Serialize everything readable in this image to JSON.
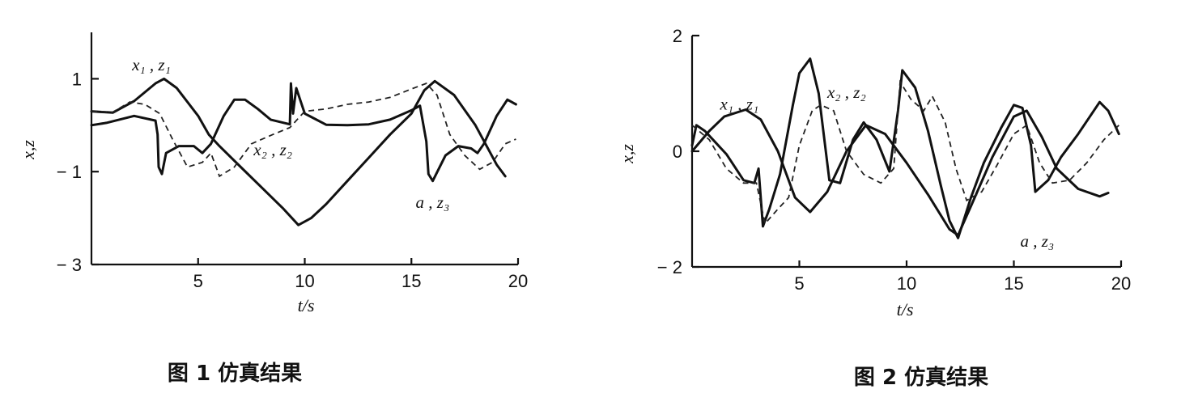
{
  "chart_data": [
    {
      "type": "line",
      "xlabel": "t/s",
      "ylabel": "x,z",
      "caption": "图 1    仿真结果",
      "xlim": [
        0,
        20
      ],
      "ylim": [
        -3,
        2
      ],
      "xticks": [
        5,
        10,
        15,
        20
      ],
      "yticks": [
        1,
        -1,
        -3
      ],
      "xtick_labels": [
        "5",
        "10",
        "15",
        "20"
      ],
      "ytick_labels": [
        "1",
        "− 1",
        "− 3"
      ],
      "annotations": [
        {
          "text": "x₁ , z₁",
          "x": 1.9,
          "y": 1.18
        },
        {
          "text": "x₂ , z₂",
          "x": 7.6,
          "y": -0.65
        },
        {
          "text": "a , z₃",
          "x": 15.2,
          "y": -1.78
        }
      ],
      "series": [
        {
          "style": "solid",
          "points": [
            [
              0,
              0.3
            ],
            [
              1,
              0.27
            ],
            [
              2,
              0.52
            ],
            [
              3,
              0.9
            ],
            [
              3.4,
              1.0
            ],
            [
              4,
              0.8
            ],
            [
              5,
              0.2
            ],
            [
              5.5,
              -0.2
            ],
            [
              6,
              -0.45
            ],
            [
              7,
              -0.9
            ],
            [
              8,
              -1.35
            ],
            [
              9,
              -1.8
            ],
            [
              9.7,
              -2.15
            ],
            [
              10.3,
              -2.0
            ],
            [
              11,
              -1.7
            ],
            [
              12,
              -1.2
            ],
            [
              13,
              -0.7
            ],
            [
              14,
              -0.2
            ],
            [
              15,
              0.25
            ],
            [
              15.6,
              0.75
            ],
            [
              16.1,
              0.95
            ],
            [
              17,
              0.65
            ],
            [
              18,
              0
            ],
            [
              19,
              -0.85
            ],
            [
              19.4,
              -1.1
            ]
          ]
        },
        {
          "style": "solid",
          "points": [
            [
              0,
              0
            ],
            [
              0.7,
              0.05
            ],
            [
              1.3,
              0.12
            ],
            [
              2,
              0.2
            ],
            [
              3,
              0.1
            ],
            [
              3.1,
              -0.2
            ],
            [
              3.15,
              -0.9
            ],
            [
              3.3,
              -1.05
            ],
            [
              3.5,
              -0.6
            ],
            [
              4.1,
              -0.45
            ],
            [
              4.8,
              -0.45
            ],
            [
              5.2,
              -0.6
            ],
            [
              5.6,
              -0.4
            ],
            [
              6.2,
              0.2
            ],
            [
              6.7,
              0.55
            ],
            [
              7.2,
              0.55
            ],
            [
              7.8,
              0.35
            ],
            [
              8.4,
              0.12
            ],
            [
              9.3,
              0.02
            ],
            [
              9.35,
              0.9
            ],
            [
              9.45,
              0.25
            ],
            [
              9.6,
              0.8
            ],
            [
              10,
              0.25
            ],
            [
              11,
              0.01
            ],
            [
              12,
              0
            ],
            [
              13,
              0.02
            ],
            [
              14,
              0.12
            ],
            [
              15,
              0.32
            ],
            [
              15.4,
              0.42
            ],
            [
              15.7,
              -0.35
            ],
            [
              15.8,
              -1.05
            ],
            [
              16,
              -1.2
            ],
            [
              16.6,
              -0.65
            ],
            [
              17.2,
              -0.45
            ],
            [
              17.8,
              -0.5
            ],
            [
              18.1,
              -0.6
            ],
            [
              18.4,
              -0.4
            ],
            [
              19,
              0.2
            ],
            [
              19.5,
              0.55
            ],
            [
              19.9,
              0.45
            ]
          ]
        },
        {
          "style": "dash",
          "points": [
            [
              0,
              0.3
            ],
            [
              1,
              0.28
            ],
            [
              1.8,
              0.5
            ],
            [
              2.5,
              0.45
            ],
            [
              3.2,
              0.25
            ],
            [
              3.8,
              -0.3
            ],
            [
              4.5,
              -0.9
            ],
            [
              5.2,
              -0.8
            ],
            [
              5.6,
              -0.6
            ],
            [
              6,
              -1.1
            ],
            [
              6.7,
              -0.9
            ],
            [
              7.5,
              -0.4
            ],
            [
              8.5,
              -0.2
            ],
            [
              9.3,
              -0.05
            ],
            [
              10,
              0.3
            ],
            [
              11,
              0.35
            ],
            [
              12,
              0.45
            ],
            [
              13,
              0.5
            ],
            [
              14,
              0.6
            ],
            [
              15,
              0.78
            ],
            [
              15.7,
              0.9
            ],
            [
              16.2,
              0.65
            ],
            [
              16.8,
              -0.2
            ],
            [
              17.5,
              -0.65
            ],
            [
              18.2,
              -0.95
            ],
            [
              18.8,
              -0.8
            ],
            [
              19.4,
              -0.4
            ],
            [
              19.9,
              -0.3
            ]
          ]
        }
      ]
    },
    {
      "type": "line",
      "xlabel": "t/s",
      "ylabel": "x,z",
      "caption": "图 2    仿真结果",
      "xlim": [
        0,
        20
      ],
      "ylim": [
        -2,
        2
      ],
      "xticks": [
        5,
        10,
        15,
        20
      ],
      "yticks": [
        2,
        0,
        -2
      ],
      "xtick_labels": [
        "5",
        "10",
        "15",
        "20"
      ],
      "ytick_labels": [
        "2",
        "0",
        "− 2"
      ],
      "annotations": [
        {
          "text": "x₁ , z₁",
          "x": 1.3,
          "y": 0.72
        },
        {
          "text": "x₂ , z₂",
          "x": 6.3,
          "y": 0.92
        },
        {
          "text": "a , z₃",
          "x": 15.3,
          "y": -1.65
        }
      ],
      "series": [
        {
          "style": "solid",
          "points": [
            [
              0,
              0
            ],
            [
              0.8,
              0.35
            ],
            [
              1.5,
              0.6
            ],
            [
              2.5,
              0.72
            ],
            [
              3.2,
              0.55
            ],
            [
              4,
              0
            ],
            [
              4.8,
              -0.8
            ],
            [
              5.5,
              -1.05
            ],
            [
              6.3,
              -0.7
            ],
            [
              7.2,
              0
            ],
            [
              8.1,
              0.45
            ],
            [
              9,
              0.3
            ],
            [
              10,
              -0.2
            ],
            [
              11,
              -0.75
            ],
            [
              12,
              -1.35
            ],
            [
              12.4,
              -1.45
            ],
            [
              13,
              -0.95
            ],
            [
              14,
              -0.1
            ],
            [
              15,
              0.6
            ],
            [
              15.6,
              0.7
            ],
            [
              16.3,
              0.25
            ],
            [
              17,
              -0.3
            ],
            [
              18,
              -0.65
            ],
            [
              19,
              -0.78
            ],
            [
              19.4,
              -0.72
            ]
          ]
        },
        {
          "style": "solid",
          "points": [
            [
              0,
              0.1
            ],
            [
              0.2,
              0.45
            ],
            [
              0.6,
              0.35
            ],
            [
              1.6,
              -0.05
            ],
            [
              2.4,
              -0.5
            ],
            [
              2.9,
              -0.55
            ],
            [
              3.1,
              -0.3
            ],
            [
              3.3,
              -1.3
            ],
            [
              3.6,
              -1.0
            ],
            [
              4.1,
              -0.4
            ],
            [
              4.7,
              0.8
            ],
            [
              5,
              1.35
            ],
            [
              5.5,
              1.6
            ],
            [
              5.9,
              1.0
            ],
            [
              6.4,
              -0.5
            ],
            [
              6.9,
              -0.55
            ],
            [
              7.5,
              0.2
            ],
            [
              8,
              0.5
            ],
            [
              8.6,
              0.2
            ],
            [
              9.2,
              -0.35
            ],
            [
              9.6,
              0.7
            ],
            [
              9.8,
              1.4
            ],
            [
              10.4,
              1.1
            ],
            [
              11,
              0.35
            ],
            [
              11.6,
              -0.6
            ],
            [
              12,
              -1.2
            ],
            [
              12.4,
              -1.5
            ],
            [
              13,
              -0.8
            ],
            [
              13.6,
              -0.2
            ],
            [
              14.4,
              0.4
            ],
            [
              15,
              0.8
            ],
            [
              15.4,
              0.75
            ],
            [
              15.8,
              0.1
            ],
            [
              16,
              -0.7
            ],
            [
              16.6,
              -0.5
            ],
            [
              17.2,
              -0.1
            ],
            [
              18,
              0.3
            ],
            [
              19,
              0.85
            ],
            [
              19.4,
              0.7
            ],
            [
              19.9,
              0.3
            ]
          ]
        },
        {
          "style": "dash",
          "points": [
            [
              0,
              0.45
            ],
            [
              0.8,
              0.2
            ],
            [
              1.6,
              -0.3
            ],
            [
              2.4,
              -0.55
            ],
            [
              3,
              -0.55
            ],
            [
              3.4,
              -1.25
            ],
            [
              4,
              -1.0
            ],
            [
              4.5,
              -0.8
            ],
            [
              5,
              0.1
            ],
            [
              5.6,
              0.7
            ],
            [
              6,
              0.8
            ],
            [
              6.6,
              0.7
            ],
            [
              7.2,
              0
            ],
            [
              8,
              -0.4
            ],
            [
              8.8,
              -0.55
            ],
            [
              9.4,
              -0.3
            ],
            [
              9.7,
              1.2
            ],
            [
              10.2,
              0.9
            ],
            [
              10.8,
              0.7
            ],
            [
              11.2,
              0.95
            ],
            [
              11.8,
              0.5
            ],
            [
              12.3,
              -0.3
            ],
            [
              12.8,
              -0.85
            ],
            [
              13.5,
              -0.7
            ],
            [
              14.2,
              -0.25
            ],
            [
              15,
              0.3
            ],
            [
              15.6,
              0.45
            ],
            [
              16.2,
              -0.2
            ],
            [
              16.8,
              -0.55
            ],
            [
              17.6,
              -0.5
            ],
            [
              18.4,
              -0.2
            ],
            [
              19.2,
              0.2
            ],
            [
              19.9,
              0.45
            ]
          ]
        }
      ]
    }
  ]
}
